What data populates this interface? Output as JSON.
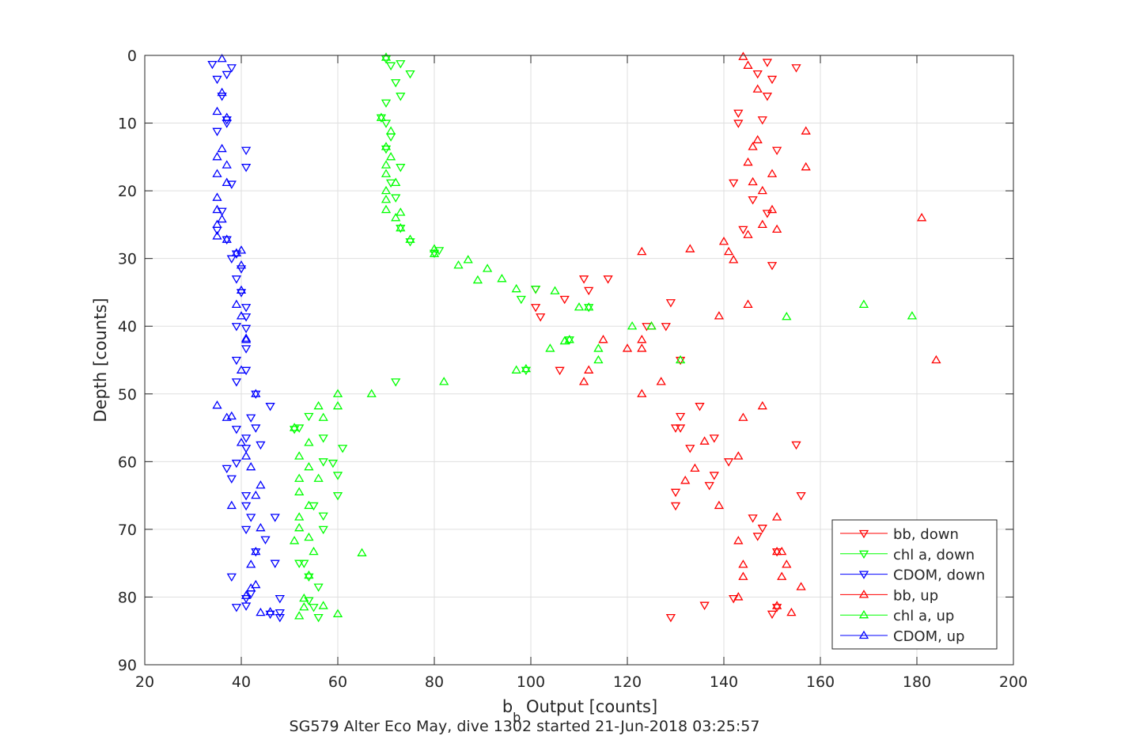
{
  "chart_data": {
    "type": "scatter",
    "title": "",
    "caption": "SG579 Alter Eco May, dive 1302 started 21-Jun-2018 03:25:57",
    "xlabel_base": "b",
    "xlabel_sub": "b",
    "xlabel_rest": " Output [counts]",
    "ylabel": "Depth [counts]",
    "xlim": [
      20,
      200
    ],
    "ylim": [
      0,
      90
    ],
    "y_reversed": true,
    "grid": true,
    "legend_position": "bottom-right",
    "x_ticks": [
      "20",
      "40",
      "60",
      "80",
      "100",
      "120",
      "140",
      "160",
      "180",
      "200"
    ],
    "y_ticks": [
      "0",
      "10",
      "20",
      "30",
      "40",
      "50",
      "60",
      "70",
      "80",
      "90"
    ],
    "colors": {
      "bb": "#ff0000",
      "chl": "#00ff00",
      "cdom": "#0000ff",
      "axis": "#262626",
      "grid": "#dfdfdf"
    },
    "legend": [
      {
        "label": "bb, down",
        "color": "#ff0000",
        "marker": "down"
      },
      {
        "label": "chl a, down",
        "color": "#00ff00",
        "marker": "down"
      },
      {
        "label": "CDOM, down",
        "color": "#0000ff",
        "marker": "down"
      },
      {
        "label": "bb, up",
        "color": "#ff0000",
        "marker": "up"
      },
      {
        "label": "chl a, up",
        "color": "#00ff00",
        "marker": "up"
      },
      {
        "label": "CDOM, up",
        "color": "#0000ff",
        "marker": "up"
      }
    ],
    "series": [
      {
        "name": "bb, down",
        "color": "#ff0000",
        "marker": "down",
        "points": [
          [
            149,
            1
          ],
          [
            155,
            1.8
          ],
          [
            147,
            2.7
          ],
          [
            150,
            3.5
          ],
          [
            149,
            6
          ],
          [
            143,
            8.5
          ],
          [
            148,
            9.5
          ],
          [
            143,
            10
          ],
          [
            151,
            14
          ],
          [
            142,
            18.8
          ],
          [
            146,
            21.3
          ],
          [
            149,
            23.3
          ],
          [
            144,
            25.7
          ],
          [
            150,
            31
          ],
          [
            129,
            36.5
          ],
          [
            101,
            34.5
          ],
          [
            107,
            36
          ],
          [
            101,
            37.2
          ],
          [
            102,
            38.6
          ],
          [
            112,
            34.7
          ],
          [
            116,
            33
          ],
          [
            111,
            33
          ],
          [
            128,
            40
          ],
          [
            124,
            40
          ],
          [
            131,
            45
          ],
          [
            106,
            46.5
          ],
          [
            131,
            53.3
          ],
          [
            130,
            55
          ],
          [
            135,
            51.8
          ],
          [
            131,
            55
          ],
          [
            138,
            56.5
          ],
          [
            133,
            58
          ],
          [
            155,
            57.5
          ],
          [
            141,
            60
          ],
          [
            138,
            62
          ],
          [
            137,
            63.5
          ],
          [
            130,
            64.5
          ],
          [
            130,
            66.5
          ],
          [
            156,
            65
          ],
          [
            146,
            68.3
          ],
          [
            148,
            69.8
          ],
          [
            147,
            71
          ],
          [
            151,
            73.3
          ],
          [
            150,
            82.5
          ],
          [
            151,
            81.5
          ],
          [
            136,
            81.2
          ],
          [
            142,
            80.2
          ],
          [
            129,
            83
          ]
        ]
      },
      {
        "name": "chl a, down",
        "color": "#00ff00",
        "marker": "down",
        "points": [
          [
            70,
            0.5
          ],
          [
            71,
            1.5
          ],
          [
            73,
            1.2
          ],
          [
            75,
            2.7
          ],
          [
            72,
            4
          ],
          [
            73,
            6
          ],
          [
            70,
            7
          ],
          [
            70,
            10
          ],
          [
            69,
            9.2
          ],
          [
            71,
            12
          ],
          [
            70,
            13.8
          ],
          [
            73,
            16.5
          ],
          [
            71,
            18.8
          ],
          [
            72,
            21
          ],
          [
            73,
            25.5
          ],
          [
            75,
            27.5
          ],
          [
            80,
            29.2
          ],
          [
            81,
            28.8
          ],
          [
            98,
            36
          ],
          [
            99,
            46.5
          ],
          [
            112,
            37.2
          ],
          [
            101,
            34.5
          ],
          [
            108,
            42
          ],
          [
            72,
            48.2
          ],
          [
            54,
            53.3
          ],
          [
            52,
            55
          ],
          [
            57,
            56.5
          ],
          [
            61,
            58
          ],
          [
            57,
            60
          ],
          [
            60,
            62
          ],
          [
            60,
            65
          ],
          [
            55,
            66.5
          ],
          [
            57,
            68
          ],
          [
            57,
            70
          ],
          [
            56,
            78.5
          ],
          [
            54,
            77
          ],
          [
            52,
            75
          ],
          [
            53,
            75
          ],
          [
            54,
            80.5
          ],
          [
            55,
            81.5
          ],
          [
            56,
            83
          ],
          [
            59,
            60.2
          ],
          [
            51,
            55.2
          ]
        ]
      },
      {
        "name": "CDOM, down",
        "color": "#0000ff",
        "marker": "down",
        "points": [
          [
            34,
            1.3
          ],
          [
            38,
            1.8
          ],
          [
            37,
            2.8
          ],
          [
            35,
            3.5
          ],
          [
            36,
            6
          ],
          [
            37,
            9.5
          ],
          [
            35,
            11.2
          ],
          [
            37,
            10
          ],
          [
            41,
            14
          ],
          [
            41,
            16.5
          ],
          [
            38,
            19
          ],
          [
            36,
            23
          ],
          [
            35,
            25.8
          ],
          [
            37,
            27.2
          ],
          [
            39,
            29.3
          ],
          [
            38,
            30
          ],
          [
            40,
            31.5
          ],
          [
            39,
            33
          ],
          [
            40,
            35
          ],
          [
            41,
            37.2
          ],
          [
            41,
            38.6
          ],
          [
            41,
            40.3
          ],
          [
            39,
            40
          ],
          [
            41,
            43.3
          ],
          [
            39,
            45
          ],
          [
            41,
            46.5
          ],
          [
            39,
            48.2
          ],
          [
            43,
            50
          ],
          [
            46,
            51.8
          ],
          [
            42,
            53.5
          ],
          [
            39,
            55.2
          ],
          [
            43,
            55
          ],
          [
            41,
            56.5
          ],
          [
            44,
            57.5
          ],
          [
            41,
            58
          ],
          [
            39,
            60.2
          ],
          [
            37,
            61
          ],
          [
            38,
            62.5
          ],
          [
            41,
            65
          ],
          [
            41,
            66.5
          ],
          [
            42,
            68.2
          ],
          [
            41,
            70
          ],
          [
            47,
            68.2
          ],
          [
            43,
            73.3
          ],
          [
            45,
            71.5
          ],
          [
            47,
            75
          ],
          [
            38,
            77
          ],
          [
            42,
            79.5
          ],
          [
            41,
            80.2
          ],
          [
            39,
            81.5
          ],
          [
            41,
            81.3
          ],
          [
            48,
            80.2
          ],
          [
            48,
            82.3
          ],
          [
            48,
            83
          ],
          [
            46,
            82.5
          ]
        ]
      },
      {
        "name": "bb, up",
        "color": "#ff0000",
        "marker": "up",
        "points": [
          [
            144,
            0.2
          ],
          [
            145,
            1.5
          ],
          [
            147,
            5
          ],
          [
            157,
            11.2
          ],
          [
            157,
            16.5
          ],
          [
            146,
            13.5
          ],
          [
            147,
            12.5
          ],
          [
            145,
            15.8
          ],
          [
            150,
            17.5
          ],
          [
            148,
            20
          ],
          [
            146,
            18.7
          ],
          [
            150,
            22.8
          ],
          [
            148,
            25
          ],
          [
            151,
            25.7
          ],
          [
            145,
            26.5
          ],
          [
            181,
            24
          ],
          [
            140,
            27.5
          ],
          [
            141,
            29
          ],
          [
            142,
            30.2
          ],
          [
            123,
            29
          ],
          [
            133,
            28.6
          ],
          [
            145,
            36.8
          ],
          [
            139,
            38.5
          ],
          [
            125,
            40
          ],
          [
            123,
            42
          ],
          [
            123,
            43.3
          ],
          [
            120,
            43.3
          ],
          [
            115,
            42
          ],
          [
            112,
            46.5
          ],
          [
            111,
            48.2
          ],
          [
            127,
            48.2
          ],
          [
            123,
            50
          ],
          [
            148,
            51.8
          ],
          [
            144,
            53.5
          ],
          [
            184,
            45
          ],
          [
            136,
            57
          ],
          [
            143,
            59.2
          ],
          [
            134,
            61
          ],
          [
            132,
            62.8
          ],
          [
            139,
            66.5
          ],
          [
            151,
            68.2
          ],
          [
            143,
            71.7
          ],
          [
            151,
            73.3
          ],
          [
            152,
            73.3
          ],
          [
            144,
            75.2
          ],
          [
            153,
            75.2
          ],
          [
            152,
            77
          ],
          [
            144,
            77
          ],
          [
            156,
            78.5
          ],
          [
            143,
            80
          ],
          [
            151,
            81.3
          ],
          [
            154,
            82.3
          ]
        ]
      },
      {
        "name": "chl a, up",
        "color": "#00ff00",
        "marker": "up",
        "points": [
          [
            70,
            0.3
          ],
          [
            69,
            9.2
          ],
          [
            71,
            11.2
          ],
          [
            70,
            13.5
          ],
          [
            71,
            15
          ],
          [
            70,
            16.2
          ],
          [
            70,
            17.5
          ],
          [
            72,
            18.8
          ],
          [
            70,
            20
          ],
          [
            70,
            21.3
          ],
          [
            70,
            22.8
          ],
          [
            73,
            23.2
          ],
          [
            72,
            24
          ],
          [
            73,
            25.5
          ],
          [
            75,
            27.2
          ],
          [
            80,
            28.6
          ],
          [
            80,
            29.3
          ],
          [
            85,
            31
          ],
          [
            87,
            30.2
          ],
          [
            91,
            31.5
          ],
          [
            89,
            33.2
          ],
          [
            94,
            33
          ],
          [
            97,
            34.5
          ],
          [
            105,
            34.8
          ],
          [
            112,
            37.2
          ],
          [
            110,
            37.2
          ],
          [
            121,
            40
          ],
          [
            125,
            40
          ],
          [
            114,
            43.3
          ],
          [
            114,
            45
          ],
          [
            108,
            42
          ],
          [
            107,
            42.2
          ],
          [
            104,
            43.3
          ],
          [
            97,
            46.5
          ],
          [
            99,
            46.3
          ],
          [
            82,
            48.2
          ],
          [
            131,
            45
          ],
          [
            169,
            36.8
          ],
          [
            179,
            38.5
          ],
          [
            153,
            38.6
          ],
          [
            60,
            50
          ],
          [
            67,
            50
          ],
          [
            60,
            51.8
          ],
          [
            56,
            51.8
          ],
          [
            57,
            53.5
          ],
          [
            51,
            55
          ],
          [
            54,
            57.2
          ],
          [
            52,
            59.2
          ],
          [
            54,
            60.8
          ],
          [
            52,
            62.5
          ],
          [
            56,
            62.5
          ],
          [
            52,
            64.5
          ],
          [
            54,
            66.5
          ],
          [
            52,
            68.2
          ],
          [
            52,
            69.8
          ],
          [
            51,
            71.7
          ],
          [
            54,
            71.2
          ],
          [
            55,
            73.3
          ],
          [
            65,
            73.5
          ],
          [
            54,
            76.8
          ],
          [
            53,
            80.2
          ],
          [
            57,
            81.3
          ],
          [
            53,
            81.5
          ],
          [
            52,
            82.8
          ],
          [
            60,
            82.5
          ]
        ]
      },
      {
        "name": "CDOM, up",
        "color": "#0000ff",
        "marker": "up",
        "points": [
          [
            36,
            0.5
          ],
          [
            37,
            9.2
          ],
          [
            36,
            5.5
          ],
          [
            35,
            8.3
          ],
          [
            36,
            13.8
          ],
          [
            35,
            15
          ],
          [
            37,
            16.2
          ],
          [
            35,
            17.5
          ],
          [
            37,
            18.8
          ],
          [
            35,
            21
          ],
          [
            35,
            22.8
          ],
          [
            36,
            24.2
          ],
          [
            35,
            25
          ],
          [
            35,
            26.7
          ],
          [
            37,
            27.2
          ],
          [
            40,
            28.8
          ],
          [
            39,
            29.2
          ],
          [
            40,
            31
          ],
          [
            40,
            34.7
          ],
          [
            39,
            36.8
          ],
          [
            40,
            38.5
          ],
          [
            41,
            42
          ],
          [
            41,
            41.8
          ],
          [
            40,
            46.5
          ],
          [
            43,
            50
          ],
          [
            35,
            51.7
          ],
          [
            37,
            53.5
          ],
          [
            38,
            53.3
          ],
          [
            40,
            57.2
          ],
          [
            41,
            59.2
          ],
          [
            42,
            60.8
          ],
          [
            44,
            63.5
          ],
          [
            43,
            65
          ],
          [
            38,
            66.5
          ],
          [
            44,
            69.8
          ],
          [
            43,
            73.3
          ],
          [
            42,
            75.2
          ],
          [
            43,
            78.2
          ],
          [
            42,
            78.7
          ],
          [
            41,
            79.8
          ],
          [
            44,
            82.3
          ],
          [
            46,
            82.2
          ]
        ]
      }
    ]
  }
}
